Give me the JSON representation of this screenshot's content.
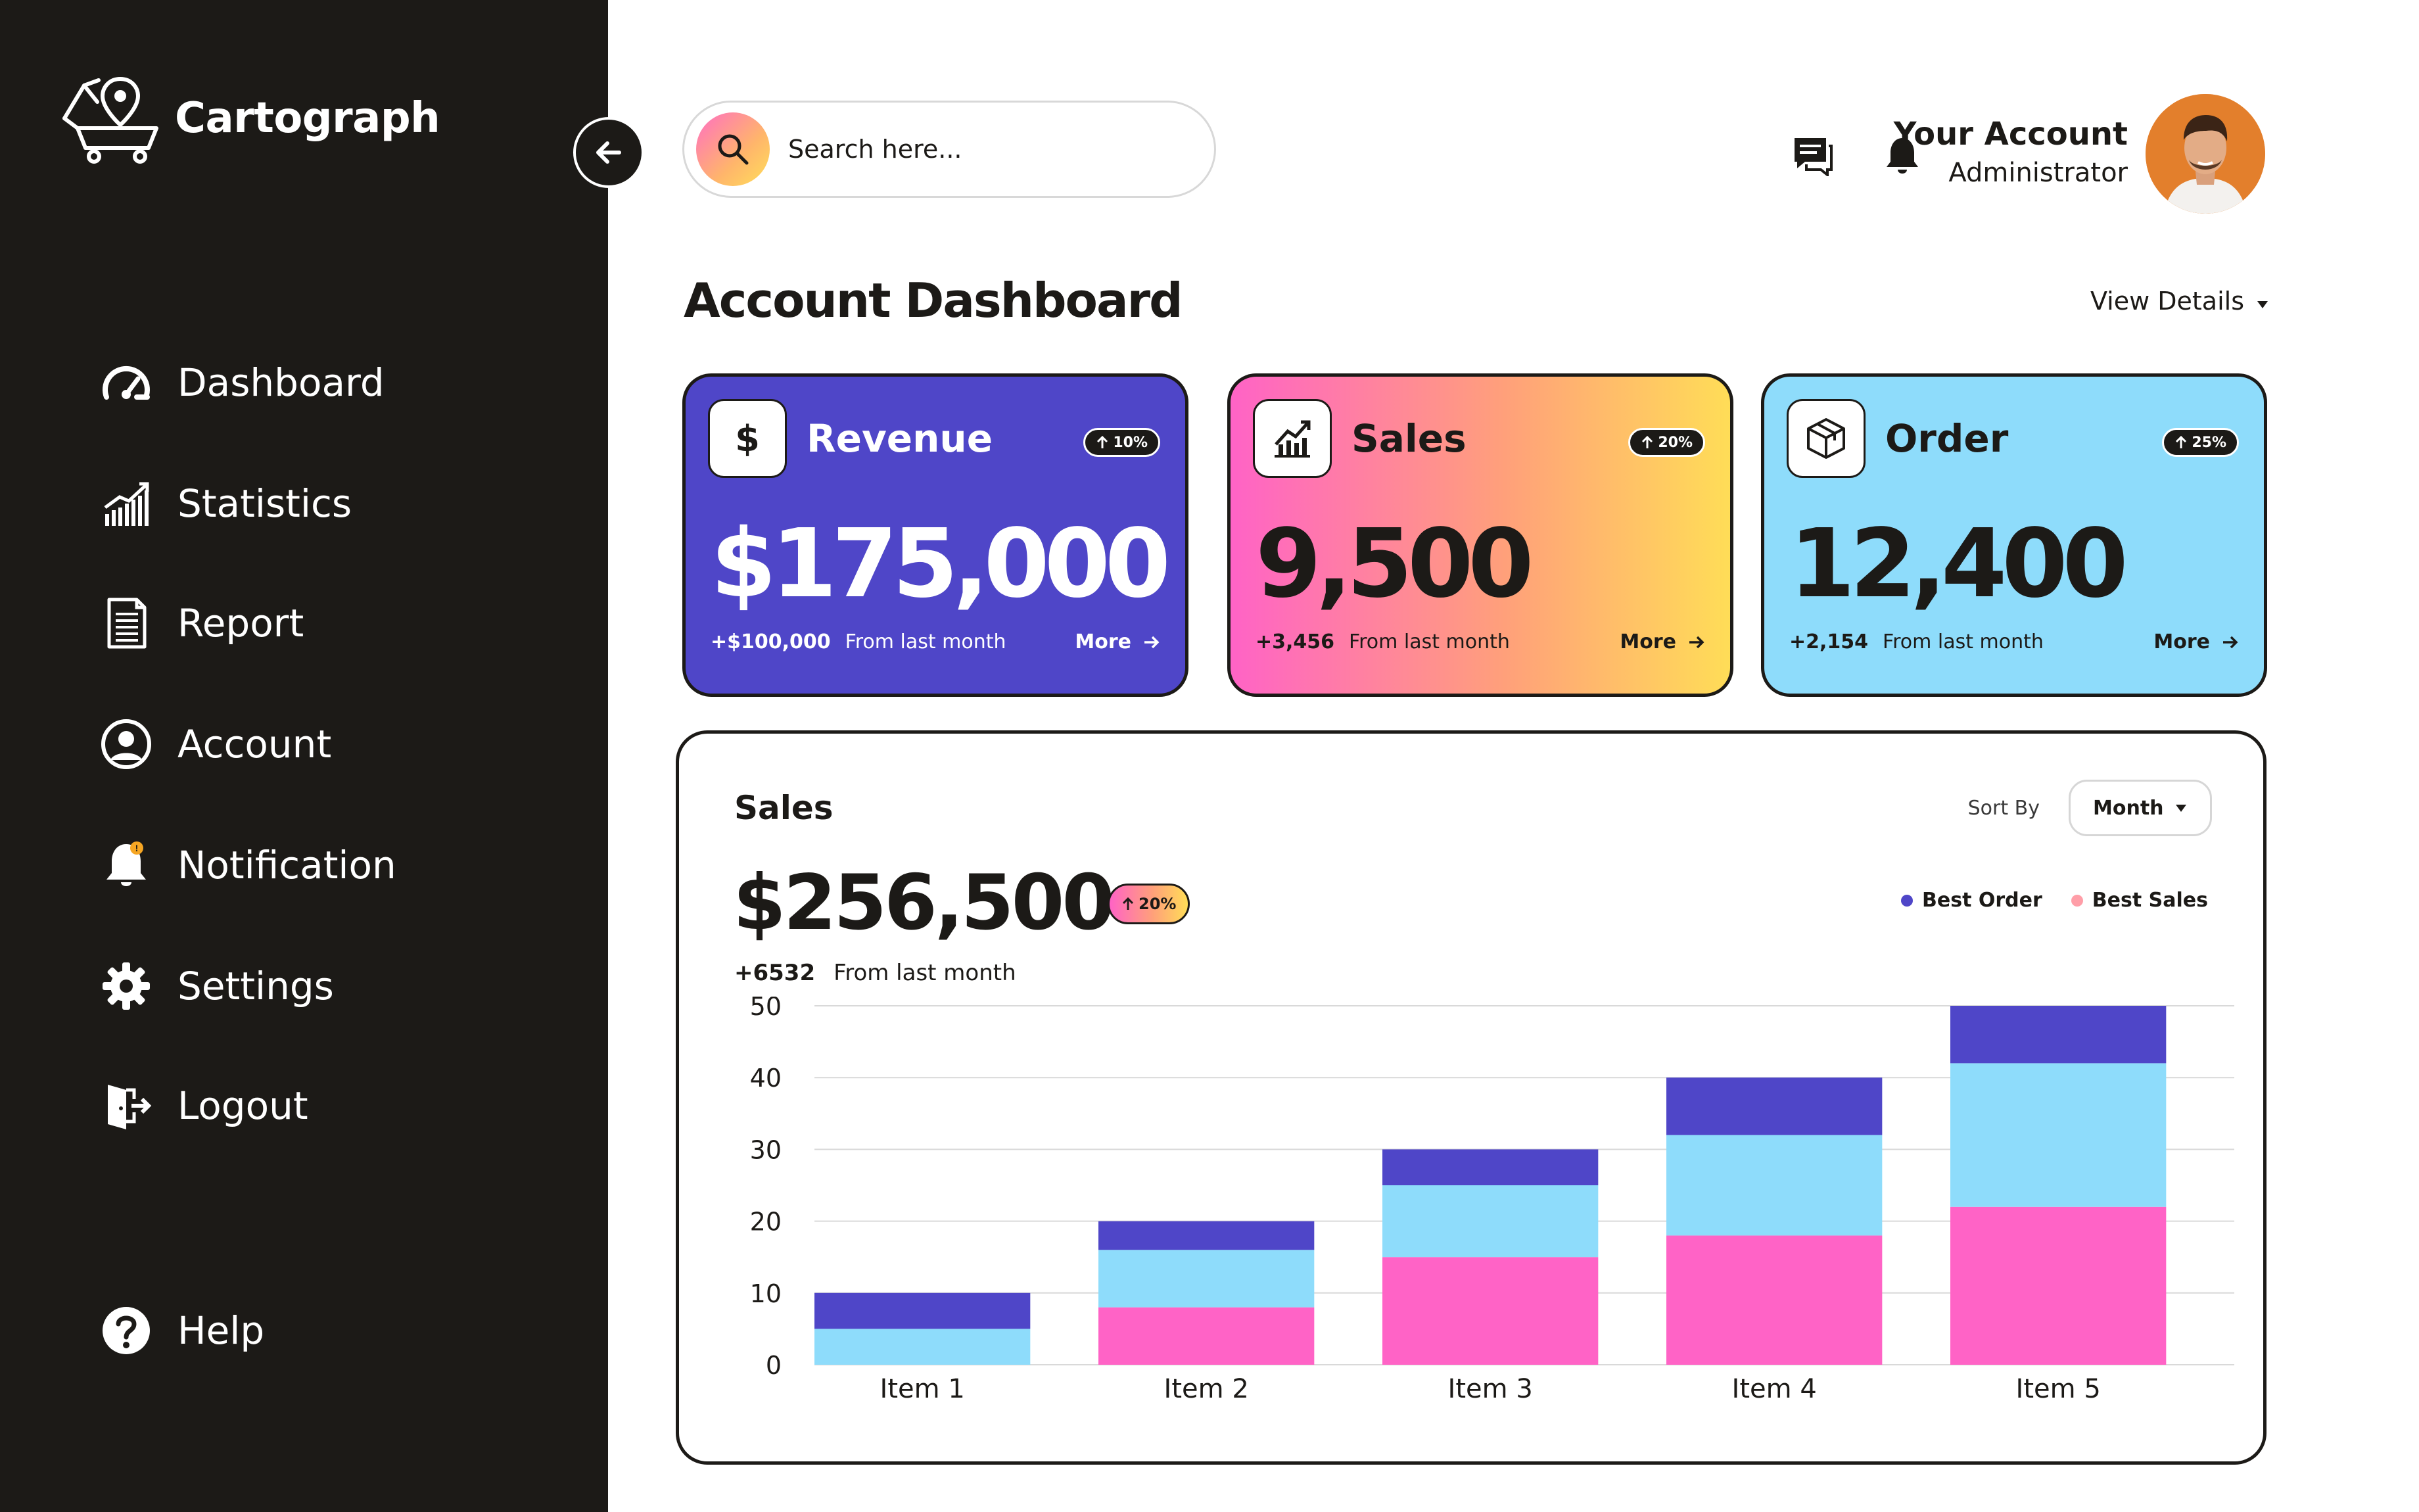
{
  "brand": {
    "name": "Cartograph"
  },
  "sidebar": {
    "items": [
      {
        "label": "Dashboard",
        "icon": "gauge-icon"
      },
      {
        "label": "Statistics",
        "icon": "bar-chart-icon"
      },
      {
        "label": "Report",
        "icon": "document-icon"
      },
      {
        "label": "Account",
        "icon": "user-circle-icon"
      },
      {
        "label": "Notification",
        "icon": "bell-icon"
      },
      {
        "label": "Settings",
        "icon": "gear-icon"
      },
      {
        "label": "Logout",
        "icon": "logout-icon"
      }
    ],
    "help": {
      "label": "Help",
      "icon": "question-icon"
    }
  },
  "search": {
    "placeholder": "Search here..."
  },
  "account": {
    "name": "Your Account",
    "role": "Administrator"
  },
  "page": {
    "title": "Account Dashboard",
    "view_details": "View Details"
  },
  "cards": {
    "revenue": {
      "title": "Revenue",
      "badge": "10%",
      "value": "$175,000",
      "delta": "+$100,000",
      "note": "From last month",
      "more": "More"
    },
    "sales": {
      "title": "Sales",
      "badge": "20%",
      "value": "9,500",
      "delta": "+3,456",
      "note": "From last month",
      "more": "More"
    },
    "order": {
      "title": "Order",
      "badge": "25%",
      "value": "12,400",
      "delta": "+2,154",
      "note": "From last month",
      "more": "More"
    }
  },
  "sales_panel": {
    "title": "Sales",
    "sort_label": "Sort By",
    "sort_value": "Month",
    "total": "$256,500",
    "badge": "20%",
    "delta": "+6532",
    "note": "From last month",
    "legend": [
      {
        "name": "Best Order",
        "color": "#4f46c8"
      },
      {
        "name": "Best Sales",
        "color": "#ff9ea8"
      }
    ]
  },
  "colors": {
    "sidebar_bg": "#1c1a17",
    "indigo": "#4f46c8",
    "sky": "#8edcfb",
    "pink": "#ff63c6"
  },
  "chart_data": {
    "type": "bar",
    "stacked": true,
    "categories": [
      "Item 1",
      "Item 2",
      "Item 3",
      "Item 4",
      "Item 5"
    ],
    "series": [
      {
        "values": [
          0,
          8,
          15,
          18,
          22
        ],
        "color": "#ff63c6"
      },
      {
        "values": [
          5,
          8,
          10,
          14,
          20
        ],
        "color": "#8edcfb"
      },
      {
        "values": [
          5,
          4,
          5,
          8,
          8
        ],
        "color": "#4f46c8"
      }
    ],
    "yticks": [
      0,
      10,
      20,
      30,
      40,
      50
    ],
    "ylim": [
      0,
      50
    ],
    "grid": true
  }
}
